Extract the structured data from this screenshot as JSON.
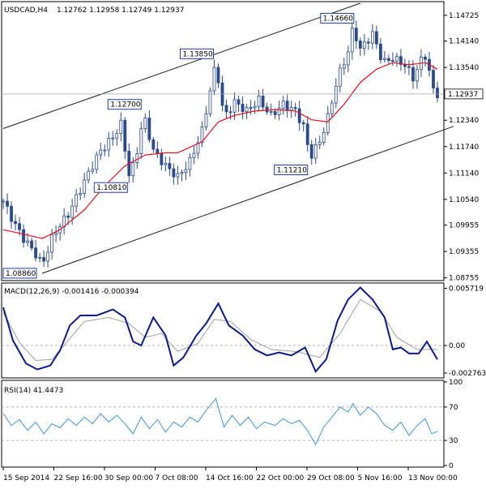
{
  "header": {
    "symbol": "USDCAD,H4",
    "ohlc": "1.12762 1.12958 1.12749 1.12937"
  },
  "colors": {
    "candle": "#2b4a8c",
    "moving_average": "#e8121a",
    "channel": "#1a1a1a",
    "macd_line": "#0c1a8a",
    "signal_line": "#a0a0a0",
    "rsi_line": "#3d95d6",
    "level_line": "#9a9a9a",
    "label_border": "#1f3fa0"
  },
  "chart_data": [
    {
      "type": "candlestick",
      "title": "USDCAD,H4",
      "ylim": [
        1.0873,
        1.15
      ],
      "y_ticks": [
        "1.14725",
        "1.14140",
        "1.13540",
        "1.12940",
        "1.12340",
        "1.11740",
        "1.11140",
        "1.10540",
        "1.09955",
        "1.09355",
        "1.08755"
      ],
      "last_price": "1.12937",
      "x_ticks": [
        "15 Sep 2014",
        "22 Sep 16:00",
        "30 Sep 00:00",
        "7 Oct 08:00",
        "14 Oct 16:00",
        "22 Oct 00:00",
        "29 Oct 08:00",
        "5 Nov 16:00",
        "13 Nov 00:00"
      ],
      "annotations": [
        {
          "text": "1.08860",
          "value": 1.0886,
          "bar": 48
        },
        {
          "text": "1.12700",
          "value": 1.127,
          "bar": 173
        },
        {
          "text": "1.10810",
          "value": 1.1081,
          "bar": 156
        },
        {
          "text": "1.13850",
          "value": 1.1385,
          "bar": 262
        },
        {
          "text": "1.14660",
          "value": 1.1466,
          "bar": 431
        },
        {
          "text": "1.11210",
          "value": 1.1121,
          "bar": 378
        }
      ],
      "closes": [
        [
          0,
          1.105
        ],
        [
          12,
          1.1005
        ],
        [
          25,
          1.0965
        ],
        [
          38,
          1.0935
        ],
        [
          48,
          1.0905
        ],
        [
          62,
          1.0975
        ],
        [
          80,
          1.102
        ],
        [
          100,
          1.1095
        ],
        [
          118,
          1.116
        ],
        [
          135,
          1.1195
        ],
        [
          145,
          1.1225
        ],
        [
          156,
          1.11
        ],
        [
          165,
          1.1165
        ],
        [
          173,
          1.1245
        ],
        [
          185,
          1.1165
        ],
        [
          200,
          1.113
        ],
        [
          215,
          1.1105
        ],
        [
          230,
          1.114
        ],
        [
          245,
          1.121
        ],
        [
          262,
          1.1365
        ],
        [
          272,
          1.124
        ],
        [
          285,
          1.1275
        ],
        [
          300,
          1.1255
        ],
        [
          315,
          1.128
        ],
        [
          330,
          1.1245
        ],
        [
          345,
          1.127
        ],
        [
          360,
          1.1255
        ],
        [
          370,
          1.122
        ],
        [
          378,
          1.115
        ],
        [
          390,
          1.1185
        ],
        [
          400,
          1.124
        ],
        [
          412,
          1.133
        ],
        [
          425,
          1.139
        ],
        [
          431,
          1.1445
        ],
        [
          440,
          1.1395
        ],
        [
          455,
          1.143
        ],
        [
          468,
          1.1365
        ],
        [
          480,
          1.1375
        ],
        [
          495,
          1.136
        ],
        [
          505,
          1.133
        ],
        [
          515,
          1.137
        ],
        [
          522,
          1.1385
        ],
        [
          528,
          1.1305
        ],
        [
          535,
          1.1294
        ]
      ],
      "moving_average": [
        [
          0,
          1.0985
        ],
        [
          25,
          1.0975
        ],
        [
          48,
          1.0965
        ],
        [
          70,
          1.0985
        ],
        [
          100,
          1.103
        ],
        [
          125,
          1.1085
        ],
        [
          150,
          1.113
        ],
        [
          175,
          1.1155
        ],
        [
          200,
          1.116
        ],
        [
          215,
          1.116
        ],
        [
          245,
          1.1185
        ],
        [
          265,
          1.123
        ],
        [
          285,
          1.1245
        ],
        [
          310,
          1.1255
        ],
        [
          335,
          1.1258
        ],
        [
          360,
          1.1255
        ],
        [
          380,
          1.1235
        ],
        [
          400,
          1.123
        ],
        [
          420,
          1.127
        ],
        [
          440,
          1.132
        ],
        [
          460,
          1.135
        ],
        [
          480,
          1.1365
        ],
        [
          500,
          1.136
        ],
        [
          520,
          1.1365
        ],
        [
          535,
          1.135
        ]
      ],
      "channel_upper": [
        [
          0,
          1.1215
        ],
        [
          440,
          1.15
        ]
      ],
      "channel_lower": [
        [
          48,
          1.0886
        ],
        [
          555,
          1.122
        ]
      ]
    },
    {
      "type": "line",
      "title": "MACD(12,26,9) -0.001416 -0.000394",
      "ylim": [
        -0.003,
        0.006
      ],
      "y_ticks": [
        "0.005719",
        "0.00",
        "-0.002763"
      ],
      "series": [
        {
          "role": "macd",
          "values": [
            [
              0,
              0.0038
            ],
            [
              12,
              0.0005
            ],
            [
              28,
              -0.0018
            ],
            [
              42,
              -0.0024
            ],
            [
              58,
              -0.002
            ],
            [
              70,
              -0.0005
            ],
            [
              82,
              0.002
            ],
            [
              95,
              0.003
            ],
            [
              115,
              0.003
            ],
            [
              135,
              0.0036
            ],
            [
              150,
              0.0028
            ],
            [
              160,
              0.0004
            ],
            [
              170,
              0.0
            ],
            [
              185,
              0.0028
            ],
            [
              200,
              0.001
            ],
            [
              210,
              -0.002
            ],
            [
              222,
              -0.0012
            ],
            [
              238,
              0.001
            ],
            [
              250,
              0.0022
            ],
            [
              265,
              0.0042
            ],
            [
              278,
              0.002
            ],
            [
              295,
              0.001
            ],
            [
              310,
              -0.0004
            ],
            [
              325,
              -0.001
            ],
            [
              340,
              -0.0007
            ],
            [
              355,
              -0.001
            ],
            [
              372,
              -0.0002
            ],
            [
              385,
              -0.0026
            ],
            [
              398,
              -0.0014
            ],
            [
              412,
              0.0025
            ],
            [
              425,
              0.0046
            ],
            [
              440,
              0.0058
            ],
            [
              455,
              0.0046
            ],
            [
              470,
              0.0028
            ],
            [
              480,
              -0.0004
            ],
            [
              490,
              -0.0002
            ],
            [
              500,
              -0.0008
            ],
            [
              512,
              -0.0008
            ],
            [
              522,
              0.0004
            ],
            [
              535,
              -0.0014
            ]
          ]
        },
        {
          "role": "signal",
          "values": [
            [
              0,
              0.0033
            ],
            [
              20,
              0.0003
            ],
            [
              40,
              -0.0015
            ],
            [
              60,
              -0.0014
            ],
            [
              80,
              0.0005
            ],
            [
              100,
              0.0024
            ],
            [
              130,
              0.0028
            ],
            [
              155,
              0.0022
            ],
            [
              175,
              0.0008
            ],
            [
              195,
              0.0012
            ],
            [
              215,
              -0.0006
            ],
            [
              240,
              0.0002
            ],
            [
              260,
              0.0026
            ],
            [
              280,
              0.0024
            ],
            [
              305,
              0.0006
            ],
            [
              330,
              -0.0004
            ],
            [
              360,
              -0.0006
            ],
            [
              390,
              -0.0012
            ],
            [
              415,
              0.0012
            ],
            [
              440,
              0.0046
            ],
            [
              465,
              0.0034
            ],
            [
              485,
              0.0008
            ],
            [
              510,
              -0.0004
            ],
            [
              535,
              -0.0004
            ]
          ]
        }
      ]
    },
    {
      "type": "line",
      "title": "RSI(14) 41.4473",
      "ylim": [
        0,
        100
      ],
      "y_ticks": [
        "100",
        "70",
        "30",
        "0"
      ],
      "levels": [
        70,
        30
      ],
      "series": [
        {
          "role": "rsi",
          "values": [
            [
              0,
              62
            ],
            [
              10,
              48
            ],
            [
              20,
              55
            ],
            [
              30,
              42
            ],
            [
              40,
              52
            ],
            [
              50,
              38
            ],
            [
              60,
              50
            ],
            [
              70,
              45
            ],
            [
              80,
              56
            ],
            [
              90,
              48
            ],
            [
              100,
              58
            ],
            [
              110,
              50
            ],
            [
              120,
              62
            ],
            [
              130,
              52
            ],
            [
              140,
              60
            ],
            [
              150,
              50
            ],
            [
              160,
              38
            ],
            [
              170,
              58
            ],
            [
              180,
              44
            ],
            [
              190,
              55
            ],
            [
              200,
              40
            ],
            [
              210,
              52
            ],
            [
              220,
              46
            ],
            [
              230,
              58
            ],
            [
              240,
              52
            ],
            [
              250,
              66
            ],
            [
              262,
              80
            ],
            [
              272,
              46
            ],
            [
              282,
              60
            ],
            [
              292,
              48
            ],
            [
              302,
              58
            ],
            [
              312,
              44
            ],
            [
              322,
              52
            ],
            [
              335,
              48
            ],
            [
              345,
              56
            ],
            [
              355,
              50
            ],
            [
              365,
              54
            ],
            [
              375,
              42
            ],
            [
              385,
              25
            ],
            [
              395,
              46
            ],
            [
              405,
              58
            ],
            [
              415,
              70
            ],
            [
              425,
              64
            ],
            [
              431,
              74
            ],
            [
              440,
              60
            ],
            [
              450,
              70
            ],
            [
              460,
              62
            ],
            [
              470,
              48
            ],
            [
              480,
              42
            ],
            [
              490,
              52
            ],
            [
              500,
              36
            ],
            [
              510,
              48
            ],
            [
              520,
              56
            ],
            [
              528,
              38
            ],
            [
              535,
              41
            ]
          ]
        }
      ]
    }
  ]
}
